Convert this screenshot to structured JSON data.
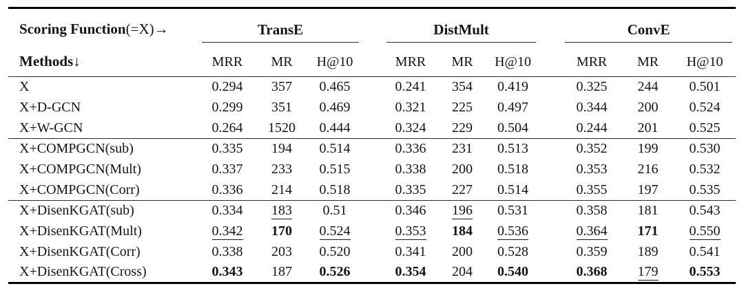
{
  "colors": {
    "background": "#ffffff",
    "text": "#141414",
    "rule_heavy": "#000000",
    "rule_light": "#2a2a2a"
  },
  "table": {
    "corner": {
      "bold": "Scoring Function",
      "rest": "(=X)",
      "arrow": "→"
    },
    "methods_header": {
      "bold": "Methods",
      "arrow": "↓"
    },
    "groups": [
      {
        "label": "TransE"
      },
      {
        "label": "DistMult"
      },
      {
        "label": "ConvE"
      }
    ],
    "metrics": [
      "MRR",
      "MR",
      "H@10"
    ],
    "rows": [
      {
        "method": "X",
        "values": [
          "0.294",
          "357",
          "0.465",
          "0.241",
          "354",
          "0.419",
          "0.325",
          "244",
          "0.501"
        ],
        "bold": [],
        "under": [],
        "group_start": false
      },
      {
        "method": "X+D-GCN",
        "values": [
          "0.299",
          "351",
          "0.469",
          "0.321",
          "225",
          "0.497",
          "0.344",
          "200",
          "0.524"
        ],
        "bold": [],
        "under": [],
        "group_start": false
      },
      {
        "method": "X+W-GCN",
        "values": [
          "0.264",
          "1520",
          "0.444",
          "0.324",
          "229",
          "0.504",
          "0.244",
          "201",
          "0.525"
        ],
        "bold": [],
        "under": [],
        "group_start": false
      },
      {
        "method": "X+COMPGCN(sub)",
        "values": [
          "0.335",
          "194",
          "0.514",
          "0.336",
          "231",
          "0.513",
          "0.352",
          "199",
          "0.530"
        ],
        "bold": [],
        "under": [],
        "group_start": true
      },
      {
        "method": "X+COMPGCN(Mult)",
        "values": [
          "0.337",
          "233",
          "0.515",
          "0.338",
          "200",
          "0.518",
          "0.353",
          "216",
          "0.532"
        ],
        "bold": [],
        "under": [],
        "group_start": false
      },
      {
        "method": "X+COMPGCN(Corr)",
        "values": [
          "0.336",
          "214",
          "0.518",
          "0.335",
          "227",
          "0.514",
          "0.355",
          "197",
          "0.535"
        ],
        "bold": [],
        "under": [],
        "group_start": false
      },
      {
        "method": "X+DisenKGAT(sub)",
        "values": [
          "0.334",
          "183",
          "0.51",
          "0.346",
          "196",
          "0.531",
          "0.358",
          "181",
          "0.543"
        ],
        "bold": [],
        "under": [
          1,
          4
        ],
        "group_start": true
      },
      {
        "method": "X+DisenKGAT(Mult)",
        "values": [
          "0.342",
          "170",
          "0.524",
          "0.353",
          "184",
          "0.536",
          "0.364",
          "171",
          "0.550"
        ],
        "bold": [
          1,
          4,
          7
        ],
        "under": [
          0,
          2,
          3,
          5,
          6,
          8
        ],
        "group_start": false
      },
      {
        "method": "X+DisenKGAT(Corr)",
        "values": [
          "0.338",
          "203",
          "0.520",
          "0.341",
          "200",
          "0.528",
          "0.359",
          "189",
          "0.541"
        ],
        "bold": [],
        "under": [],
        "group_start": false
      },
      {
        "method": "X+DisenKGAT(Cross)",
        "values": [
          "0.343",
          "187",
          "0.526",
          "0.354",
          "204",
          "0.540",
          "0.368",
          "179",
          "0.553"
        ],
        "bold": [
          0,
          2,
          3,
          5,
          6,
          8
        ],
        "under": [
          7
        ],
        "group_start": false
      }
    ]
  }
}
